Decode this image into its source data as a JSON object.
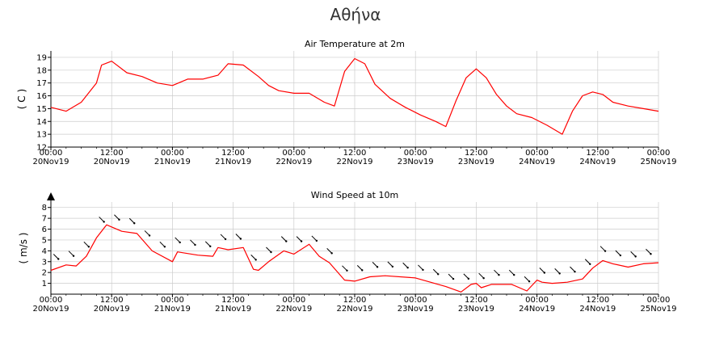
{
  "page": {
    "title": "Αθήνα"
  },
  "colors": {
    "temperature_line": "#ff0000",
    "wind_line": "#ff0000",
    "barbs": "#000000",
    "grid": "#cccccc"
  },
  "chart_data": [
    {
      "type": "line",
      "title": "Air Temperature at 2m",
      "ylabel": "( C )",
      "xlabel": "",
      "ylim": [
        12,
        19.5
      ],
      "yticks": [
        12,
        13,
        14,
        15,
        16,
        17,
        18,
        19
      ],
      "grid": true,
      "xlim": [
        "20Nov19 00:00",
        "25Nov19 00:00"
      ],
      "xticks": [
        {
          "time": "00:00",
          "date": "20Nov19"
        },
        {
          "time": "12:00",
          "date": "20Nov19"
        },
        {
          "time": "00:00",
          "date": "21Nov19"
        },
        {
          "time": "12:00",
          "date": "21Nov19"
        },
        {
          "time": "00:00",
          "date": "22Nov19"
        },
        {
          "time": "12:00",
          "date": "22Nov19"
        },
        {
          "time": "00:00",
          "date": "23Nov19"
        },
        {
          "time": "12:00",
          "date": "23Nov19"
        },
        {
          "time": "00:00",
          "date": "24Nov19"
        },
        {
          "time": "12:00",
          "date": "24Nov19"
        },
        {
          "time": "00:00",
          "date": "25Nov19"
        }
      ],
      "series": [
        {
          "x": [
            "20Nov19 00:00",
            "20Nov19 03:00",
            "20Nov19 06:00",
            "20Nov19 09:00",
            "20Nov19 10:00",
            "20Nov19 12:00",
            "20Nov19 15:00",
            "20Nov19 18:00",
            "20Nov19 21:00",
            "21Nov19 00:00",
            "21Nov19 03:00",
            "21Nov19 06:00",
            "21Nov19 09:00",
            "21Nov19 11:00",
            "21Nov19 14:00",
            "21Nov19 17:00",
            "21Nov19 19:00",
            "21Nov19 21:00",
            "22Nov19 00:00",
            "22Nov19 03:00",
            "22Nov19 06:00",
            "22Nov19 08:00",
            "22Nov19 10:00",
            "22Nov19 12:00",
            "22Nov19 14:00",
            "22Nov19 16:00",
            "22Nov19 19:00",
            "22Nov19 22:00",
            "23Nov19 01:00",
            "23Nov19 04:00",
            "23Nov19 06:00",
            "23Nov19 08:00",
            "23Nov19 10:00",
            "23Nov19 12:00",
            "23Nov19 14:00",
            "23Nov19 16:00",
            "23Nov19 18:00",
            "23Nov19 20:00",
            "23Nov19 23:00",
            "24Nov19 02:00",
            "24Nov19 05:00",
            "24Nov19 07:00",
            "24Nov19 09:00",
            "24Nov19 11:00",
            "24Nov19 13:00",
            "24Nov19 15:00",
            "24Nov19 18:00",
            "24Nov19 21:00",
            "25Nov19 00:00"
          ],
          "values": [
            15.1,
            14.8,
            15.5,
            17.0,
            18.4,
            18.7,
            17.8,
            17.5,
            17.0,
            16.8,
            17.3,
            17.3,
            17.6,
            18.5,
            18.4,
            17.5,
            16.8,
            16.4,
            16.2,
            16.2,
            15.5,
            15.2,
            17.9,
            18.9,
            18.5,
            16.9,
            15.8,
            15.1,
            14.5,
            14.0,
            13.6,
            15.6,
            17.4,
            18.1,
            17.4,
            16.1,
            15.2,
            14.6,
            14.3,
            13.7,
            13.0,
            14.8,
            16.0,
            16.3,
            16.1,
            15.5,
            15.2,
            15.0,
            14.8
          ]
        }
      ]
    },
    {
      "type": "line",
      "title": "Wind Speed at 10m",
      "ylabel": "( m/s )",
      "xlabel": "",
      "ylim": [
        0,
        8.5
      ],
      "yticks": [
        1,
        2,
        3,
        4,
        5,
        6,
        7,
        8
      ],
      "grid": true,
      "xlim": [
        "20Nov19 00:00",
        "25Nov19 00:00"
      ],
      "xticks": [
        {
          "time": "00:00",
          "date": "20Nov19"
        },
        {
          "time": "12:00",
          "date": "20Nov19"
        },
        {
          "time": "00:00",
          "date": "21Nov19"
        },
        {
          "time": "12:00",
          "date": "21Nov19"
        },
        {
          "time": "00:00",
          "date": "22Nov19"
        },
        {
          "time": "12:00",
          "date": "22Nov19"
        },
        {
          "time": "00:00",
          "date": "23Nov19"
        },
        {
          "time": "12:00",
          "date": "23Nov19"
        },
        {
          "time": "00:00",
          "date": "24Nov19"
        },
        {
          "time": "12:00",
          "date": "24Nov19"
        },
        {
          "time": "00:00",
          "date": "25Nov19"
        }
      ],
      "series": [
        {
          "x": [
            "20Nov19 00:00",
            "20Nov19 03:00",
            "20Nov19 05:00",
            "20Nov19 07:00",
            "20Nov19 09:00",
            "20Nov19 11:00",
            "20Nov19 14:00",
            "20Nov19 17:00",
            "20Nov19 20:00",
            "21Nov19 00:00",
            "21Nov19 01:00",
            "21Nov19 05:00",
            "21Nov19 08:00",
            "21Nov19 09:00",
            "21Nov19 11:00",
            "21Nov19 14:00",
            "21Nov19 16:00",
            "21Nov19 17:00",
            "21Nov19 19:00",
            "21Nov19 22:00",
            "22Nov19 00:00",
            "22Nov19 03:00",
            "22Nov19 05:00",
            "22Nov19 07:00",
            "22Nov19 10:00",
            "22Nov19 12:00",
            "22Nov19 15:00",
            "22Nov19 18:00",
            "23Nov19 00:00",
            "23Nov19 06:00",
            "23Nov19 09:00",
            "23Nov19 11:00",
            "23Nov19 12:00",
            "23Nov19 13:00",
            "23Nov19 15:00",
            "23Nov19 19:00",
            "23Nov19 22:00",
            "24Nov19 00:00",
            "24Nov19 01:00",
            "24Nov19 03:00",
            "24Nov19 06:00",
            "24Nov19 09:00",
            "24Nov19 11:00",
            "24Nov19 13:00",
            "24Nov19 15:00",
            "24Nov19 18:00",
            "24Nov19 21:00",
            "25Nov19 00:00"
          ],
          "values": [
            2.2,
            2.7,
            2.6,
            3.5,
            5.2,
            6.4,
            5.8,
            5.6,
            4.0,
            3.0,
            3.9,
            3.6,
            3.5,
            4.3,
            4.1,
            4.3,
            2.3,
            2.2,
            3.0,
            4.0,
            3.7,
            4.6,
            3.5,
            2.9,
            1.3,
            1.2,
            1.6,
            1.7,
            1.5,
            0.7,
            0.2,
            0.9,
            1.0,
            0.6,
            0.9,
            0.9,
            0.3,
            1.3,
            1.1,
            1.0,
            1.1,
            1.4,
            2.4,
            3.1,
            2.8,
            2.5,
            2.8,
            2.9
          ]
        }
      ]
    }
  ]
}
